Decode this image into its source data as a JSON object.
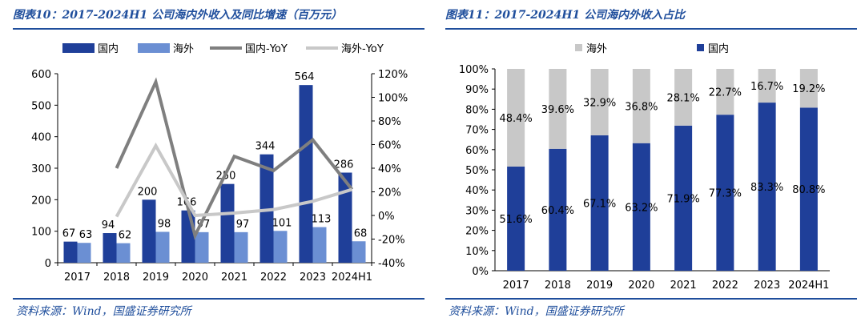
{
  "figures": [
    {
      "title": "图表10：2017-2024H1 公司海内外收入及同比增速（百万元）",
      "source": "资料来源：Wind，国盛证券研究所"
    },
    {
      "title": "图表11：2017-2024H1 公司海内外收入占比",
      "source": "资料来源：Wind，国盛证券研究所"
    }
  ],
  "colors": {
    "domestic": "#1f3f99",
    "overseas": "#6b8fd3",
    "domestic_yoy": "#7f7f7f",
    "overseas_yoy": "#c8c8c8",
    "share_overseas": "#c8c8c8",
    "share_domestic": "#1f3f99",
    "title": "#1f4e9c"
  },
  "chart_data": [
    {
      "type": "bar",
      "categories": [
        "2017",
        "2018",
        "2019",
        "2020",
        "2021",
        "2022",
        "2023",
        "2024H1"
      ],
      "series": [
        {
          "name": "国内",
          "kind": "bar",
          "axis": "left",
          "values": [
            67,
            94,
            200,
            166,
            250,
            344,
            564,
            286
          ]
        },
        {
          "name": "海外",
          "kind": "bar",
          "axis": "left",
          "values": [
            63,
            62,
            98,
            97,
            97,
            101,
            113,
            68
          ]
        },
        {
          "name": "国内-YoY",
          "kind": "line",
          "axis": "right",
          "values": [
            null,
            40,
            113,
            -17,
            50,
            38,
            64,
            22
          ]
        },
        {
          "name": "海外-YoY",
          "kind": "line",
          "axis": "right",
          "values": [
            null,
            -1,
            59,
            0,
            2,
            5,
            12,
            22
          ]
        }
      ],
      "ylim": [
        0,
        600
      ],
      "yticks": [
        "0",
        "100",
        "200",
        "300",
        "400",
        "500",
        "600"
      ],
      "y2lim": [
        -40,
        120
      ],
      "y2ticks": [
        "-40%",
        "-20%",
        "0%",
        "20%",
        "40%",
        "60%",
        "80%",
        "100%",
        "120%"
      ],
      "legend_position": "top",
      "grid": false
    },
    {
      "type": "bar",
      "stacked": true,
      "categories": [
        "2017",
        "2018",
        "2019",
        "2020",
        "2021",
        "2022",
        "2023",
        "2024H1"
      ],
      "series": [
        {
          "name": "国内",
          "values": [
            51.6,
            60.4,
            67.1,
            63.2,
            71.9,
            77.3,
            83.3,
            80.8
          ],
          "labels": [
            "51.6%",
            "60.4%",
            "67.1%",
            "63.2%",
            "71.9%",
            "77.3%",
            "83.3%",
            "80.8%"
          ]
        },
        {
          "name": "海外",
          "values": [
            48.4,
            39.6,
            32.9,
            36.8,
            28.1,
            22.7,
            16.7,
            19.2
          ],
          "labels": [
            "48.4%",
            "39.6%",
            "32.9%",
            "36.8%",
            "28.1%",
            "22.7%",
            "16.7%",
            "19.2%"
          ]
        }
      ],
      "legend": [
        "海外",
        "国内"
      ],
      "ylim": [
        0,
        100
      ],
      "yticks": [
        "0%",
        "10%",
        "20%",
        "30%",
        "40%",
        "50%",
        "60%",
        "70%",
        "80%",
        "90%",
        "100%"
      ],
      "legend_position": "top",
      "grid": false
    }
  ]
}
